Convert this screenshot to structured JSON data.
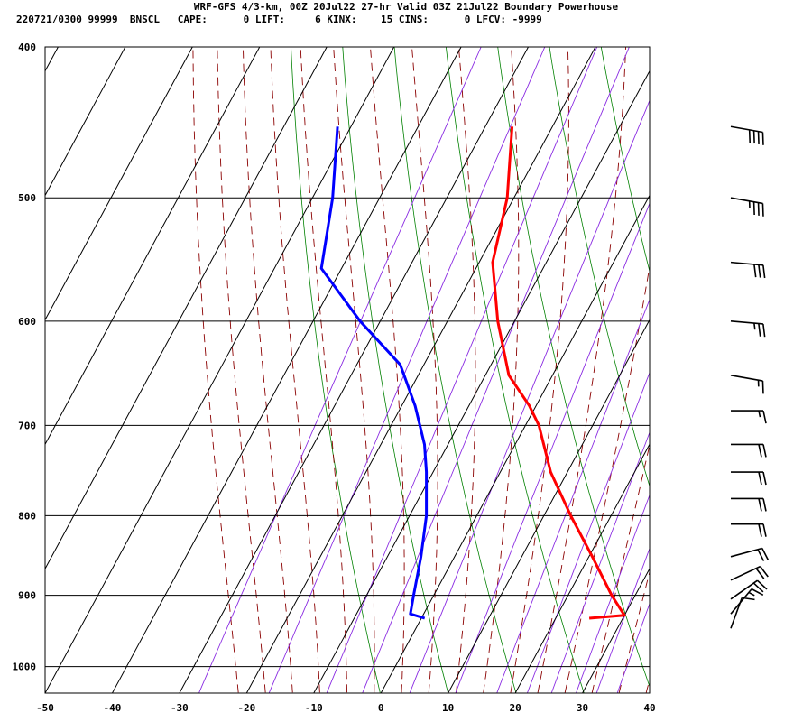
{
  "header": {
    "title": "WRF-GFS 4/3-km, 00Z 20Jul22 27-hr Valid 03Z 21Jul22 Boundary Powerhouse",
    "indices": "220721/0300 99999  BNSCL   CAPE:      0 LIFT:     6 KINX:    15 CINS:      0 LFCV: -9999"
  },
  "chart_data": {
    "type": "line",
    "subtype": "skew-t log-p sounding",
    "xlabel": "",
    "ylabel": "",
    "x_ticks": [
      -50,
      -40,
      -30,
      -20,
      -10,
      0,
      10,
      20,
      30,
      40
    ],
    "p_ticks": [
      400,
      500,
      600,
      700,
      800,
      900,
      1000
    ],
    "xlim": [
      -50,
      40
    ],
    "plim": [
      400,
      1040
    ],
    "y_scale": "log",
    "grid": true,
    "series": [
      {
        "color": "#ff0000",
        "role": "temperature",
        "points": [
          {
            "p": 931,
            "t": 25.0
          },
          {
            "p": 927,
            "t": 30.0
          },
          {
            "p": 900,
            "t": 26.5
          },
          {
            "p": 850,
            "t": 20.5
          },
          {
            "p": 800,
            "t": 14.0
          },
          {
            "p": 750,
            "t": 7.5
          },
          {
            "p": 700,
            "t": 2.0
          },
          {
            "p": 680,
            "t": -1.0
          },
          {
            "p": 650,
            "t": -6.5
          },
          {
            "p": 600,
            "t": -12.5
          },
          {
            "p": 550,
            "t": -18.0
          },
          {
            "p": 500,
            "t": -21.0
          },
          {
            "p": 450,
            "t": -26.0
          }
        ]
      },
      {
        "color": "#0000ff",
        "role": "dewpoint",
        "points": [
          {
            "p": 931,
            "t": 0.5
          },
          {
            "p": 925,
            "t": -2.0
          },
          {
            "p": 900,
            "t": -3.0
          },
          {
            "p": 850,
            "t": -5.0
          },
          {
            "p": 800,
            "t": -7.5
          },
          {
            "p": 750,
            "t": -11.0
          },
          {
            "p": 720,
            "t": -13.5
          },
          {
            "p": 680,
            "t": -18.0
          },
          {
            "p": 640,
            "t": -23.5
          },
          {
            "p": 600,
            "t": -33.0
          },
          {
            "p": 555,
            "t": -43.0
          },
          {
            "p": 500,
            "t": -47.0
          },
          {
            "p": 450,
            "t": -52.0
          }
        ]
      }
    ],
    "wind_barbs": [
      {
        "p": 450,
        "dir": 280,
        "spd": 40
      },
      {
        "p": 500,
        "dir": 280,
        "spd": 35
      },
      {
        "p": 550,
        "dir": 275,
        "spd": 30
      },
      {
        "p": 600,
        "dir": 275,
        "spd": 25
      },
      {
        "p": 650,
        "dir": 280,
        "spd": 15
      },
      {
        "p": 685,
        "dir": 270,
        "spd": 15
      },
      {
        "p": 720,
        "dir": 270,
        "spd": 20
      },
      {
        "p": 750,
        "dir": 270,
        "spd": 20
      },
      {
        "p": 780,
        "dir": 270,
        "spd": 20
      },
      {
        "p": 810,
        "dir": 270,
        "spd": 20
      },
      {
        "p": 850,
        "dir": 255,
        "spd": 20
      },
      {
        "p": 880,
        "dir": 245,
        "spd": 20
      },
      {
        "p": 905,
        "dir": 235,
        "spd": 20
      },
      {
        "p": 925,
        "dir": 220,
        "spd": 15
      },
      {
        "p": 945,
        "dir": 200,
        "spd": 10
      }
    ],
    "background_lines": {
      "dry_adiabat_color": "#008000",
      "moist_adiabat_color": "#8b0000",
      "mixing_ratio_color": "#8a2be2",
      "grid_color": "#000000"
    }
  }
}
